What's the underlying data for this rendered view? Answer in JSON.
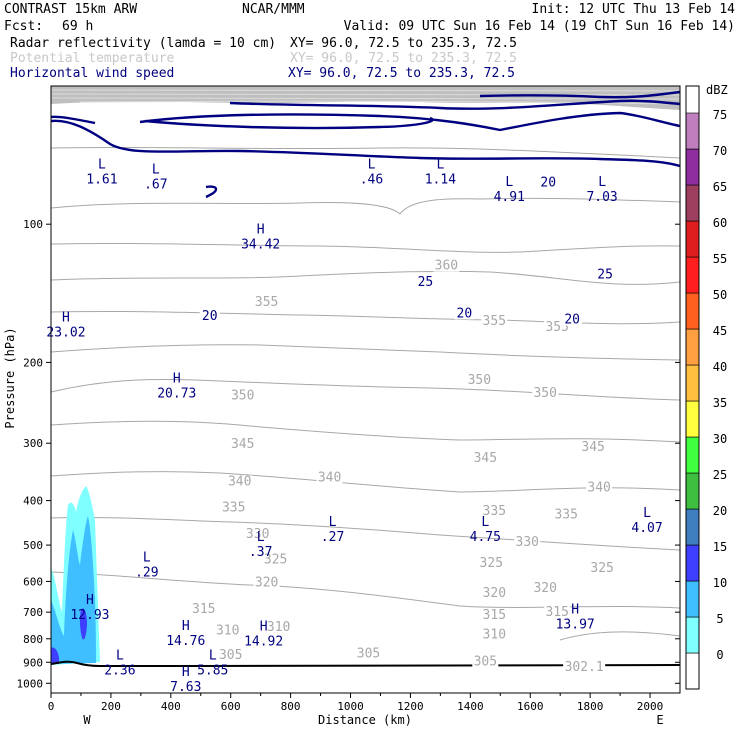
{
  "header": {
    "model": "CONTRAST 15km ARW",
    "center": "NCAR/MMM",
    "init": "Init: 12 UTC Thu 13 Feb 14",
    "fcst_label": "Fcst:",
    "fcst_value": "69 h",
    "valid": "Valid: 09 UTC Sun 16 Feb 14 (19 ChT Sun 16 Feb 14)",
    "fields": [
      {
        "name": "Radar reflectivity (lamda = 10 cm)",
        "xy": "XY=  96.0, 72.5 to 235.3, 72.5",
        "style": "black"
      },
      {
        "name": "Potential temperature",
        "xy": "XY=  96.0, 72.5 to 235.3, 72.5",
        "style": "gray"
      },
      {
        "name": "Horizontal wind speed",
        "xy": "XY=  96.0, 72.5 to 235.3, 72.5",
        "style": "blue"
      }
    ]
  },
  "colors": {
    "wind": "#000080",
    "theta": "#a8a8a8",
    "terrain": "#000000",
    "stratosphere_fill": "#b4b4b4"
  },
  "chart_data": {
    "type": "vertical cross-section",
    "xlabel": "Distance (km)",
    "ylabel": "Pressure (hPa)",
    "xlim": [
      0,
      2100
    ],
    "ylim_hPa": [
      1050,
      50
    ],
    "x_ticks": [
      0,
      200,
      400,
      600,
      800,
      1000,
      1200,
      1400,
      1600,
      1800,
      2000
    ],
    "y_ticks": [
      100,
      200,
      300,
      400,
      500,
      600,
      700,
      800,
      900,
      1000
    ],
    "direction_labels": {
      "west": "W",
      "east": "E"
    },
    "colorbar": {
      "units": "dBZ",
      "levels": [
        0,
        5,
        10,
        15,
        20,
        25,
        30,
        35,
        40,
        45,
        50,
        55,
        60,
        65,
        70,
        75
      ],
      "colors": [
        "#ffffff",
        "#7fffff",
        "#3fbfff",
        "#3f3fff",
        "#3f7fbf",
        "#3fbf3f",
        "#3fff3f",
        "#ffff3f",
        "#ffbf3f",
        "#ff9f3f",
        "#ff5f1f",
        "#ff1f1f",
        "#df1f1f",
        "#9f3f5f",
        "#8f2f9f",
        "#bf7fbf"
      ]
    },
    "potential_temperature_labels": [
      {
        "text": "360",
        "x": 1320,
        "p": 125
      },
      {
        "text": "355",
        "x": 720,
        "p": 150
      },
      {
        "text": "355",
        "x": 1480,
        "p": 165
      },
      {
        "text": "355",
        "x": 1690,
        "p": 170
      },
      {
        "text": "350",
        "x": 1430,
        "p": 222
      },
      {
        "text": "350",
        "x": 1650,
        "p": 237
      },
      {
        "text": "350",
        "x": 640,
        "p": 240
      },
      {
        "text": "345",
        "x": 640,
        "p": 306
      },
      {
        "text": "345",
        "x": 1450,
        "p": 328
      },
      {
        "text": "345",
        "x": 1810,
        "p": 310
      },
      {
        "text": "340",
        "x": 630,
        "p": 369
      },
      {
        "text": "340",
        "x": 930,
        "p": 362
      },
      {
        "text": "340",
        "x": 1830,
        "p": 380
      },
      {
        "text": "335",
        "x": 610,
        "p": 420
      },
      {
        "text": "335",
        "x": 1480,
        "p": 428
      },
      {
        "text": "335",
        "x": 1720,
        "p": 435
      },
      {
        "text": "330",
        "x": 690,
        "p": 480
      },
      {
        "text": "330",
        "x": 1590,
        "p": 500
      },
      {
        "text": "325",
        "x": 750,
        "p": 545
      },
      {
        "text": "325",
        "x": 1470,
        "p": 555
      },
      {
        "text": "325",
        "x": 1840,
        "p": 570
      },
      {
        "text": "320",
        "x": 720,
        "p": 612
      },
      {
        "text": "320",
        "x": 1480,
        "p": 645
      },
      {
        "text": "320",
        "x": 1650,
        "p": 630
      },
      {
        "text": "315",
        "x": 510,
        "p": 700
      },
      {
        "text": "315",
        "x": 1480,
        "p": 720
      },
      {
        "text": "315",
        "x": 1690,
        "p": 710
      },
      {
        "text": "310",
        "x": 590,
        "p": 780
      },
      {
        "text": "310",
        "x": 760,
        "p": 765
      },
      {
        "text": "310",
        "x": 1480,
        "p": 795
      },
      {
        "text": "305",
        "x": 600,
        "p": 880
      },
      {
        "text": "305",
        "x": 1060,
        "p": 875
      },
      {
        "text": "305",
        "x": 1450,
        "p": 910
      },
      {
        "text": "302.1",
        "x": 1780,
        "p": 935
      }
    ],
    "wind_contour_labels": [
      {
        "text": "20",
        "x": 530,
        "p": 160
      },
      {
        "text": "20",
        "x": 1380,
        "p": 158
      },
      {
        "text": "20",
        "x": 1740,
        "p": 163
      },
      {
        "text": "20",
        "x": 1660,
        "p": 82
      },
      {
        "text": "25",
        "x": 1250,
        "p": 135
      },
      {
        "text": "25",
        "x": 1850,
        "p": 130
      }
    ],
    "extrema": [
      {
        "type": "L",
        "value": "1.61",
        "x": 170,
        "p": 78
      },
      {
        "type": "L",
        "value": ".67",
        "x": 350,
        "p": 80
      },
      {
        "type": "L",
        "value": ".46",
        "x": 1070,
        "p": 78
      },
      {
        "type": "L",
        "value": "1.14",
        "x": 1300,
        "p": 78
      },
      {
        "type": "L",
        "value": "4.91",
        "x": 1530,
        "p": 85
      },
      {
        "type": "L",
        "value": "7.03",
        "x": 1840,
        "p": 85
      },
      {
        "type": "H",
        "value": "34.42",
        "x": 700,
        "p": 108
      },
      {
        "type": "H",
        "value": "23.02",
        "x": 50,
        "p": 168
      },
      {
        "type": "H",
        "value": "20.73",
        "x": 420,
        "p": 228
      },
      {
        "type": "L",
        "value": "4.07",
        "x": 1990,
        "p": 448
      },
      {
        "type": "L",
        "value": ".27",
        "x": 940,
        "p": 468
      },
      {
        "type": "L",
        "value": "4.75",
        "x": 1450,
        "p": 468
      },
      {
        "type": "L",
        "value": ".37",
        "x": 700,
        "p": 505
      },
      {
        "type": "L",
        "value": ".29",
        "x": 320,
        "p": 560
      },
      {
        "type": "H",
        "value": "12.93",
        "x": 130,
        "p": 693
      },
      {
        "type": "H",
        "value": "13.97",
        "x": 1750,
        "p": 727
      },
      {
        "type": "H",
        "value": "14.76",
        "x": 450,
        "p": 788
      },
      {
        "type": "H",
        "value": "14.92",
        "x": 710,
        "p": 790
      },
      {
        "type": "L",
        "value": "2.36",
        "x": 230,
        "p": 915
      },
      {
        "type": "L",
        "value": "5.85",
        "x": 540,
        "p": 915
      },
      {
        "type": "H",
        "value": "7.63",
        "x": 450,
        "p": 993
      }
    ]
  }
}
